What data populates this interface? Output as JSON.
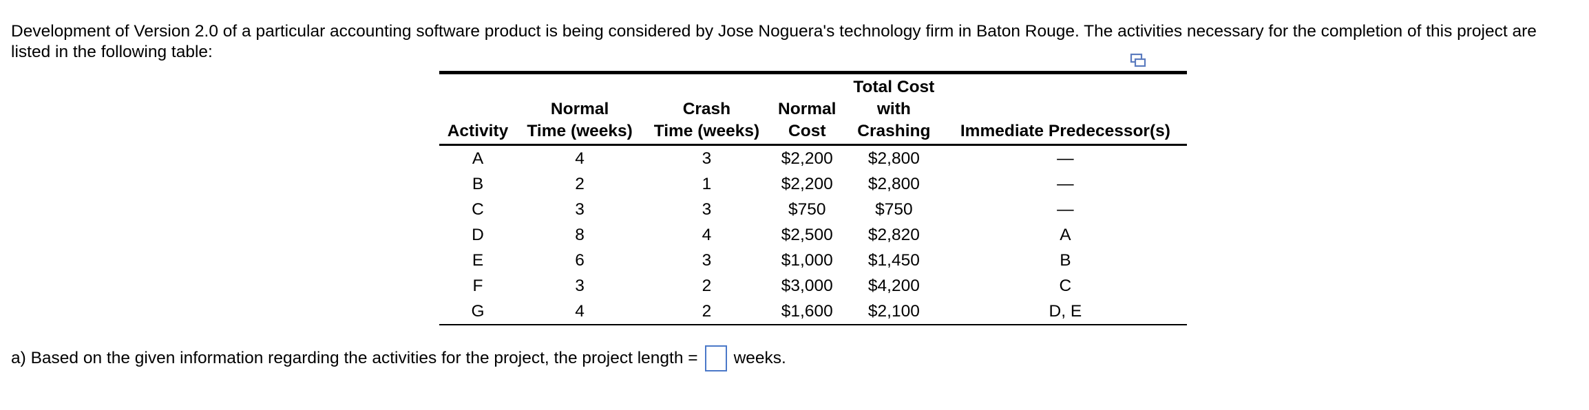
{
  "intro": {
    "text": "Development of Version 2.0 of a particular accounting software product is being considered by Jose Noguera's technology firm in Baton Rouge. The activities necessary for the completion of this project are listed in the following table:"
  },
  "icons": {
    "copy": "copy-icon"
  },
  "table": {
    "headers": {
      "activity": "Activity",
      "normal_time": [
        "Normal",
        "Time (weeks)"
      ],
      "crash_time": [
        "Crash",
        "Time (weeks)"
      ],
      "normal_cost": [
        "Normal",
        "Cost"
      ],
      "crash_cost": [
        "Total Cost",
        "with",
        "Crashing"
      ],
      "predecessors": "Immediate Predecessor(s)"
    },
    "rows": [
      {
        "activity": "A",
        "normal_time": "4",
        "crash_time": "3",
        "normal_cost": "$2,200",
        "crash_cost": "$2,800",
        "pred": "—"
      },
      {
        "activity": "B",
        "normal_time": "2",
        "crash_time": "1",
        "normal_cost": "$2,200",
        "crash_cost": "$2,800",
        "pred": "—"
      },
      {
        "activity": "C",
        "normal_time": "3",
        "crash_time": "3",
        "normal_cost": "$750",
        "crash_cost": "$750",
        "pred": "—"
      },
      {
        "activity": "D",
        "normal_time": "8",
        "crash_time": "4",
        "normal_cost": "$2,500",
        "crash_cost": "$2,820",
        "pred": "A"
      },
      {
        "activity": "E",
        "normal_time": "6",
        "crash_time": "3",
        "normal_cost": "$1,000",
        "crash_cost": "$1,450",
        "pred": "B"
      },
      {
        "activity": "F",
        "normal_time": "3",
        "crash_time": "2",
        "normal_cost": "$3,000",
        "crash_cost": "$4,200",
        "pred": "C"
      },
      {
        "activity": "G",
        "normal_time": "4",
        "crash_time": "2",
        "normal_cost": "$1,600",
        "crash_cost": "$2,100",
        "pred": "D, E"
      }
    ]
  },
  "question": {
    "prefix": "a) Based on the given information regarding the activities for the project, the project length =",
    "answer_value": "",
    "suffix": "weeks."
  },
  "colors": {
    "answer_box_border": "#4a78c8",
    "icon": "#5b7bbf"
  }
}
